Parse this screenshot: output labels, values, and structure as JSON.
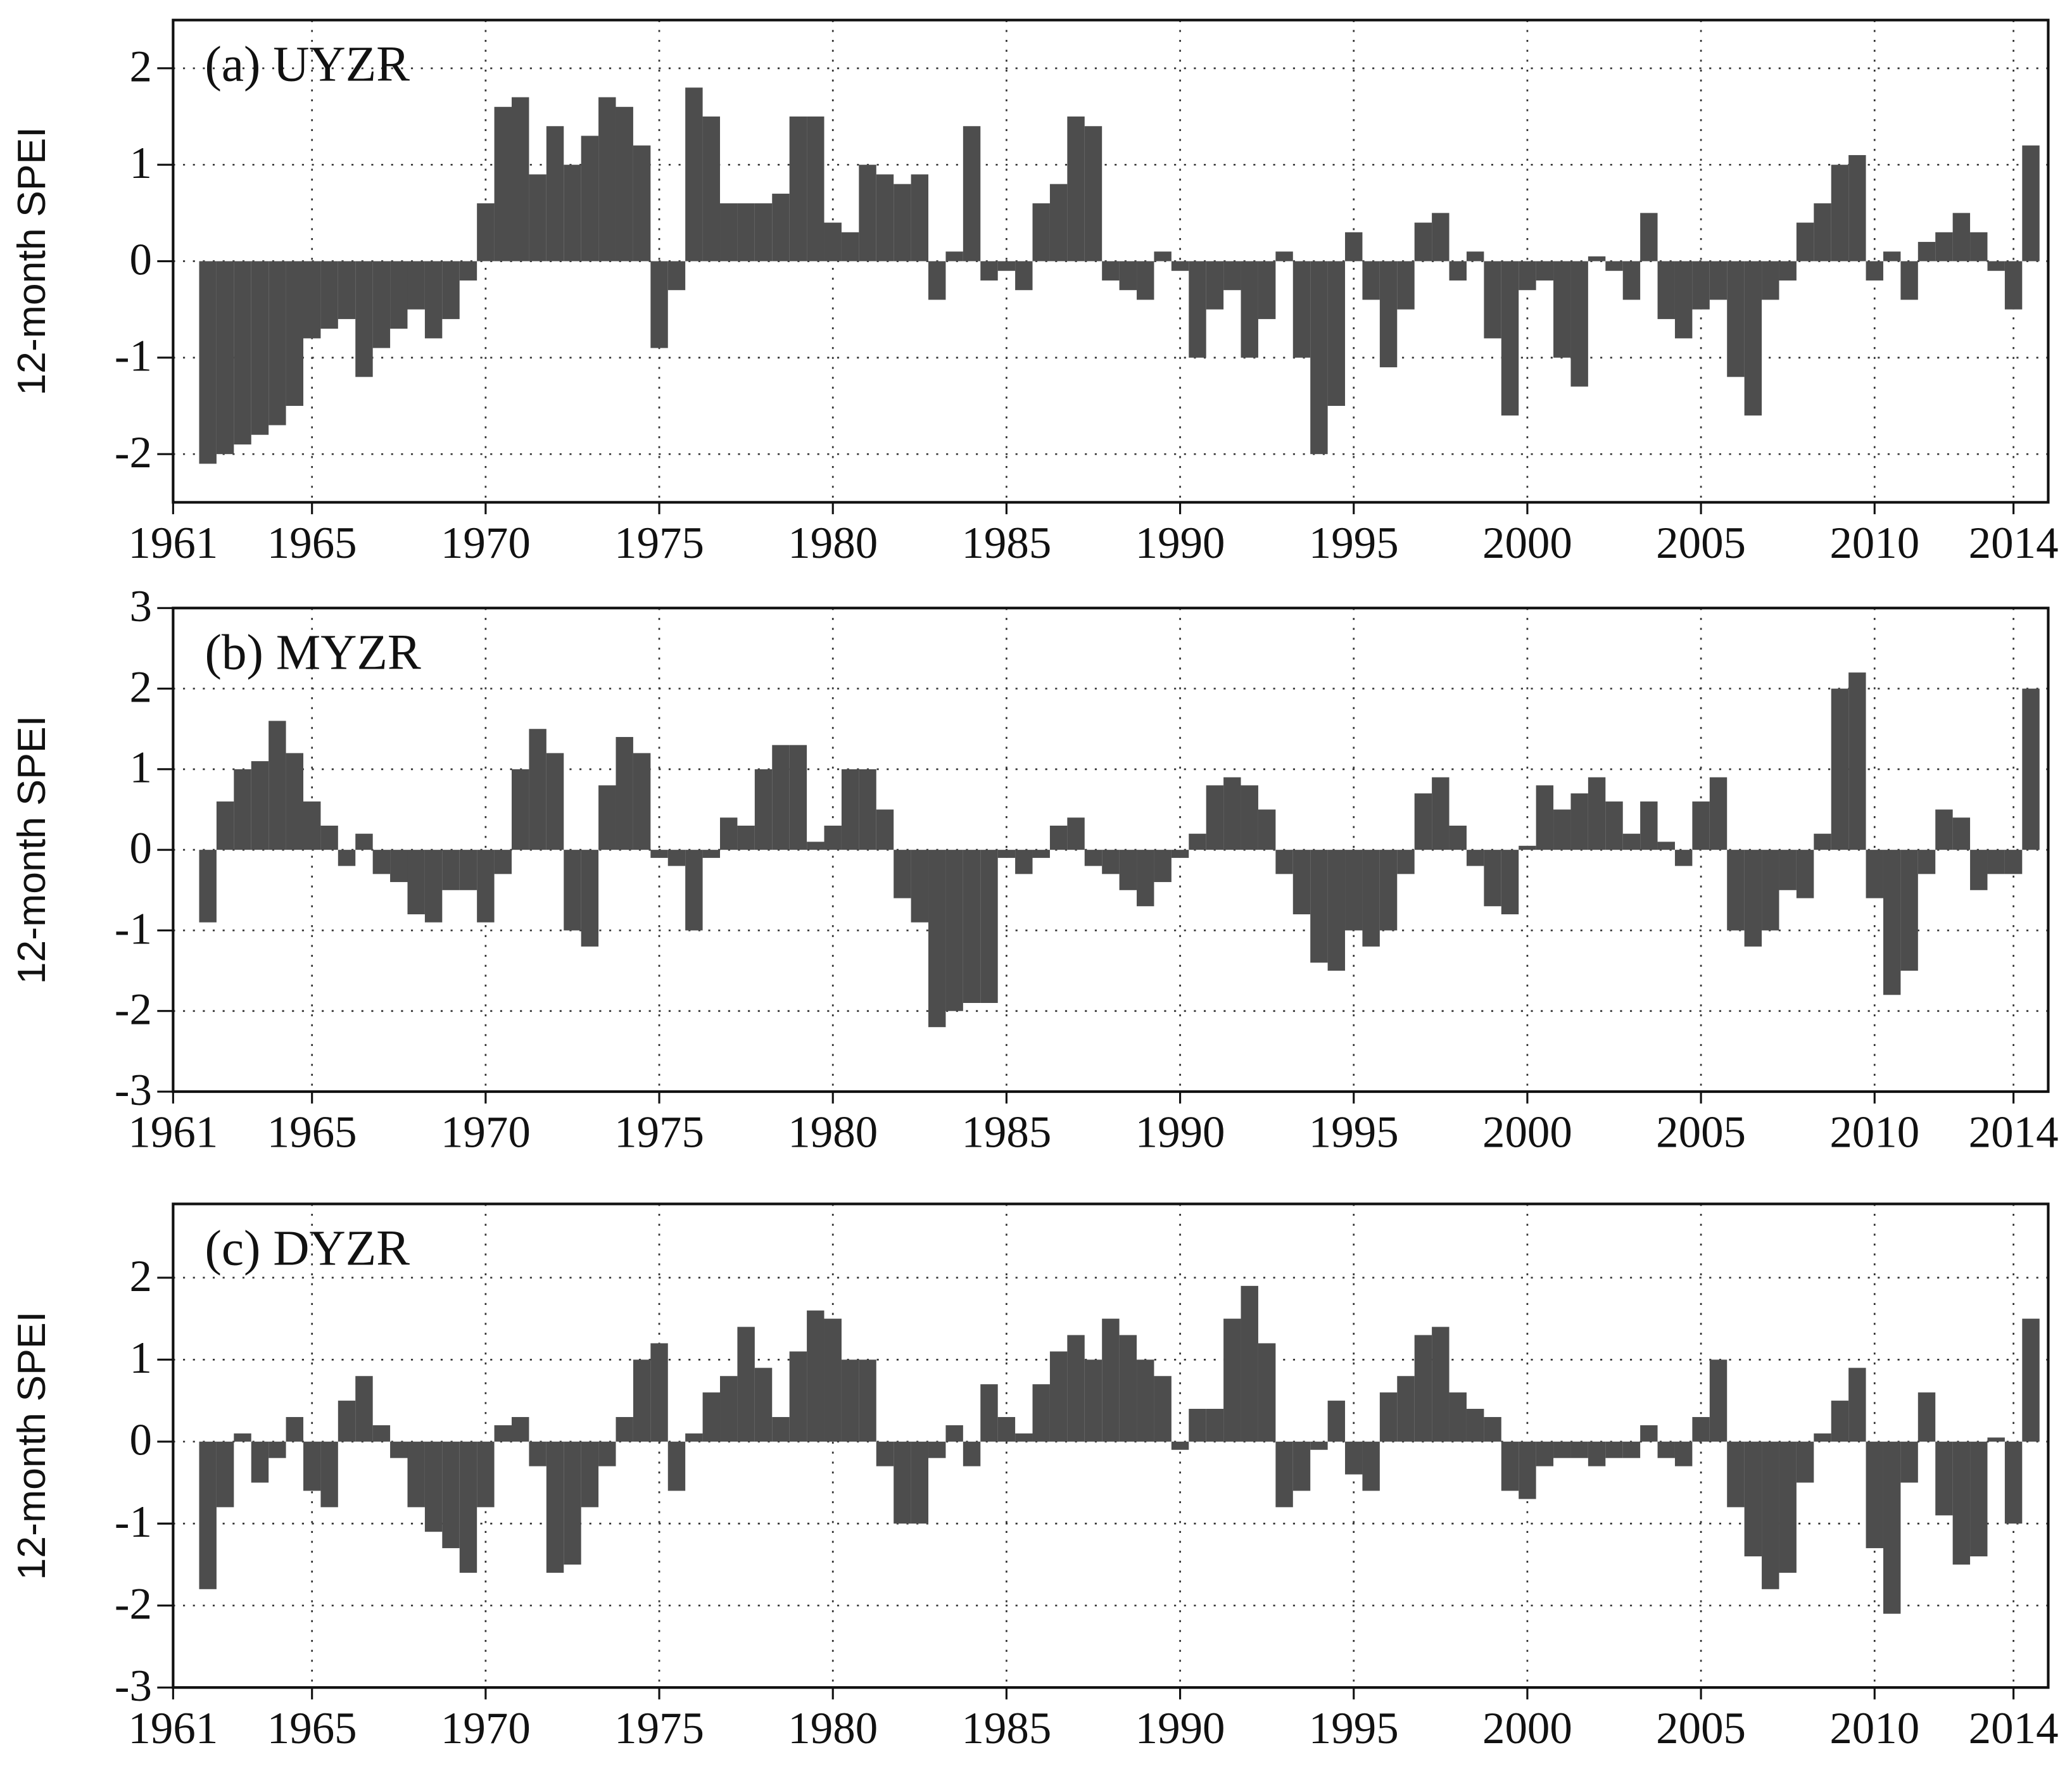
{
  "chart_data": [
    {
      "type": "bar",
      "title": "(a) UYZR",
      "y_label": "12-month SPEI",
      "color": "#4d4d4d",
      "grid": true,
      "xlim": [
        1961,
        2015
      ],
      "xticks": [
        1961,
        1965,
        1970,
        1975,
        1980,
        1985,
        1990,
        1995,
        2000,
        2005,
        2010,
        2014
      ],
      "ylim": [
        -2.5,
        2.5
      ],
      "yticks": [
        -2,
        -1,
        0,
        1,
        2
      ],
      "x": [
        1962,
        1962.5,
        1963,
        1963.5,
        1964,
        1964.5,
        1965,
        1965.5,
        1966,
        1966.5,
        1967,
        1967.5,
        1968,
        1968.5,
        1969,
        1969.5,
        1970,
        1970.5,
        1971,
        1971.5,
        1972,
        1972.5,
        1973,
        1973.5,
        1974,
        1974.5,
        1975,
        1975.5,
        1976,
        1976.5,
        1977,
        1977.5,
        1978,
        1978.5,
        1979,
        1979.5,
        1980,
        1980.5,
        1981,
        1981.5,
        1982,
        1982.5,
        1983,
        1983.5,
        1984,
        1984.5,
        1985,
        1985.5,
        1986,
        1986.5,
        1987,
        1987.5,
        1988,
        1988.5,
        1989,
        1989.5,
        1990,
        1990.5,
        1991,
        1991.5,
        1992,
        1992.5,
        1993,
        1993.5,
        1994,
        1994.5,
        1995,
        1995.5,
        1996,
        1996.5,
        1997,
        1997.5,
        1998,
        1998.5,
        1999,
        1999.5,
        2000,
        2000.5,
        2001,
        2001.5,
        2002,
        2002.5,
        2003,
        2003.5,
        2004,
        2004.5,
        2005,
        2005.5,
        2006,
        2006.5,
        2007,
        2007.5,
        2008,
        2008.5,
        2009,
        2009.5,
        2010,
        2010.5,
        2011,
        2011.5,
        2012,
        2012.5,
        2013,
        2013.5,
        2014,
        2014.5
      ],
      "values": [
        -2.1,
        -2.0,
        -1.9,
        -1.8,
        -1.7,
        -1.5,
        -0.8,
        -0.7,
        -0.6,
        -1.2,
        -0.9,
        -0.7,
        -0.5,
        -0.8,
        -0.6,
        -0.2,
        0.6,
        1.6,
        1.7,
        0.9,
        1.4,
        1.0,
        1.3,
        1.7,
        1.6,
        1.2,
        -0.9,
        -0.3,
        1.8,
        1.5,
        0.6,
        0.6,
        0.6,
        0.7,
        1.5,
        1.5,
        0.4,
        0.3,
        1.0,
        0.9,
        0.8,
        0.9,
        -0.4,
        0.1,
        1.4,
        -0.2,
        -0.1,
        -0.3,
        0.6,
        0.8,
        1.5,
        1.4,
        -0.2,
        -0.3,
        -0.4,
        0.1,
        -0.1,
        -1.0,
        -0.5,
        -0.3,
        -1.0,
        -0.6,
        0.1,
        -1.0,
        -2.0,
        -1.5,
        0.3,
        -0.4,
        -1.1,
        -0.5,
        0.4,
        0.5,
        -0.2,
        0.1,
        -0.8,
        -1.6,
        -0.3,
        -0.2,
        -1.0,
        -1.3,
        0.05,
        -0.1,
        -0.4,
        0.5,
        -0.6,
        -0.8,
        -0.5,
        -0.4,
        -1.2,
        -1.6,
        -0.4,
        -0.2,
        0.4,
        0.6,
        1.0,
        1.1,
        -0.2,
        0.1,
        -0.4,
        0.2,
        0.3,
        0.5,
        0.3,
        -0.1,
        -0.5,
        1.2
      ]
    },
    {
      "type": "bar",
      "title": "(b) MYZR",
      "y_label": "12-month SPEI",
      "color": "#4d4d4d",
      "grid": true,
      "xlim": [
        1961,
        2015
      ],
      "xticks": [
        1961,
        1965,
        1970,
        1975,
        1980,
        1985,
        1990,
        1995,
        2000,
        2005,
        2010,
        2014
      ],
      "ylim": [
        -3,
        3
      ],
      "yticks": [
        -3,
        -2,
        -1,
        0,
        1,
        2,
        3
      ],
      "x": [
        1962,
        1962.5,
        1963,
        1963.5,
        1964,
        1964.5,
        1965,
        1965.5,
        1966,
        1966.5,
        1967,
        1967.5,
        1968,
        1968.5,
        1969,
        1969.5,
        1970,
        1970.5,
        1971,
        1971.5,
        1972,
        1972.5,
        1973,
        1973.5,
        1974,
        1974.5,
        1975,
        1975.5,
        1976,
        1976.5,
        1977,
        1977.5,
        1978,
        1978.5,
        1979,
        1979.5,
        1980,
        1980.5,
        1981,
        1981.5,
        1982,
        1982.5,
        1983,
        1983.5,
        1984,
        1984.5,
        1985,
        1985.5,
        1986,
        1986.5,
        1987,
        1987.5,
        1988,
        1988.5,
        1989,
        1989.5,
        1990,
        1990.5,
        1991,
        1991.5,
        1992,
        1992.5,
        1993,
        1993.5,
        1994,
        1994.5,
        1995,
        1995.5,
        1996,
        1996.5,
        1997,
        1997.5,
        1998,
        1998.5,
        1999,
        1999.5,
        2000,
        2000.5,
        2001,
        2001.5,
        2002,
        2002.5,
        2003,
        2003.5,
        2004,
        2004.5,
        2005,
        2005.5,
        2006,
        2006.5,
        2007,
        2007.5,
        2008,
        2008.5,
        2009,
        2009.5,
        2010,
        2010.5,
        2011,
        2011.5,
        2012,
        2012.5,
        2013,
        2013.5,
        2014,
        2014.5
      ],
      "values": [
        -0.9,
        0.6,
        1.0,
        1.1,
        1.6,
        1.2,
        0.6,
        0.3,
        -0.2,
        0.2,
        -0.3,
        -0.4,
        -0.8,
        -0.9,
        -0.5,
        -0.5,
        -0.9,
        -0.3,
        1.0,
        1.5,
        1.2,
        -1.0,
        -1.2,
        0.8,
        1.4,
        1.2,
        -0.1,
        -0.2,
        -1.0,
        -0.1,
        0.4,
        0.3,
        1.0,
        1.3,
        1.3,
        0.1,
        0.3,
        1.0,
        1.0,
        0.5,
        -0.6,
        -0.9,
        -2.2,
        -2.0,
        -1.9,
        -1.9,
        -0.1,
        -0.3,
        -0.1,
        0.3,
        0.4,
        -0.2,
        -0.3,
        -0.5,
        -0.7,
        -0.4,
        -0.1,
        0.2,
        0.8,
        0.9,
        0.8,
        0.5,
        -0.3,
        -0.8,
        -1.4,
        -1.5,
        -1.0,
        -1.2,
        -1.0,
        -0.3,
        0.7,
        0.9,
        0.3,
        -0.2,
        -0.7,
        -0.8,
        0.05,
        0.8,
        0.5,
        0.7,
        0.9,
        0.6,
        0.2,
        0.6,
        0.1,
        -0.2,
        0.6,
        0.9,
        -1.0,
        -1.2,
        -1.0,
        -0.5,
        -0.6,
        0.2,
        2.0,
        2.2,
        -0.6,
        -1.8,
        -1.5,
        -0.3,
        0.5,
        0.4,
        -0.5,
        -0.3,
        -0.3,
        2.0
      ]
    },
    {
      "type": "bar",
      "title": "(c) DYZR",
      "y_label": "12-month SPEI",
      "color": "#4d4d4d",
      "grid": true,
      "xlim": [
        1961,
        2015
      ],
      "xticks": [
        1961,
        1965,
        1970,
        1975,
        1980,
        1985,
        1990,
        1995,
        2000,
        2005,
        2010,
        2014
      ],
      "ylim": [
        -3,
        2.9
      ],
      "yticks": [
        -3,
        -2,
        -1,
        0,
        1,
        2
      ],
      "x": [
        1962,
        1962.5,
        1963,
        1963.5,
        1964,
        1964.5,
        1965,
        1965.5,
        1966,
        1966.5,
        1967,
        1967.5,
        1968,
        1968.5,
        1969,
        1969.5,
        1970,
        1970.5,
        1971,
        1971.5,
        1972,
        1972.5,
        1973,
        1973.5,
        1974,
        1974.5,
        1975,
        1975.5,
        1976,
        1976.5,
        1977,
        1977.5,
        1978,
        1978.5,
        1979,
        1979.5,
        1980,
        1980.5,
        1981,
        1981.5,
        1982,
        1982.5,
        1983,
        1983.5,
        1984,
        1984.5,
        1985,
        1985.5,
        1986,
        1986.5,
        1987,
        1987.5,
        1988,
        1988.5,
        1989,
        1989.5,
        1990,
        1990.5,
        1991,
        1991.5,
        1992,
        1992.5,
        1993,
        1993.5,
        1994,
        1994.5,
        1995,
        1995.5,
        1996,
        1996.5,
        1997,
        1997.5,
        1998,
        1998.5,
        1999,
        1999.5,
        2000,
        2000.5,
        2001,
        2001.5,
        2002,
        2002.5,
        2003,
        2003.5,
        2004,
        2004.5,
        2005,
        2005.5,
        2006,
        2006.5,
        2007,
        2007.5,
        2008,
        2008.5,
        2009,
        2009.5,
        2010,
        2010.5,
        2011,
        2011.5,
        2012,
        2012.5,
        2013,
        2013.5,
        2014,
        2014.5
      ],
      "values": [
        -1.8,
        -0.8,
        0.1,
        -0.5,
        -0.2,
        0.3,
        -0.6,
        -0.8,
        0.5,
        0.8,
        0.2,
        -0.2,
        -0.8,
        -1.1,
        -1.3,
        -1.6,
        -0.8,
        0.2,
        0.3,
        -0.3,
        -1.6,
        -1.5,
        -0.8,
        -0.3,
        0.3,
        1.0,
        1.2,
        -0.6,
        0.1,
        0.6,
        0.8,
        1.4,
        0.9,
        0.3,
        1.1,
        1.6,
        1.5,
        1.0,
        1.0,
        -0.3,
        -1.0,
        -1.0,
        -0.2,
        0.2,
        -0.3,
        0.7,
        0.3,
        0.1,
        0.7,
        1.1,
        1.3,
        1.0,
        1.5,
        1.3,
        1.0,
        0.8,
        -0.1,
        0.4,
        0.4,
        1.5,
        1.9,
        1.2,
        -0.8,
        -0.6,
        -0.1,
        0.5,
        -0.4,
        -0.6,
        0.6,
        0.8,
        1.3,
        1.4,
        0.6,
        0.4,
        0.3,
        -0.6,
        -0.7,
        -0.3,
        -0.2,
        -0.2,
        -0.3,
        -0.2,
        -0.2,
        0.2,
        -0.2,
        -0.3,
        0.3,
        1.0,
        -0.8,
        -1.4,
        -1.8,
        -1.6,
        -0.5,
        0.1,
        0.5,
        0.9,
        -1.3,
        -2.1,
        -0.5,
        0.6,
        -0.9,
        -1.5,
        -1.4,
        0.05,
        -1.0,
        1.5
      ]
    }
  ]
}
